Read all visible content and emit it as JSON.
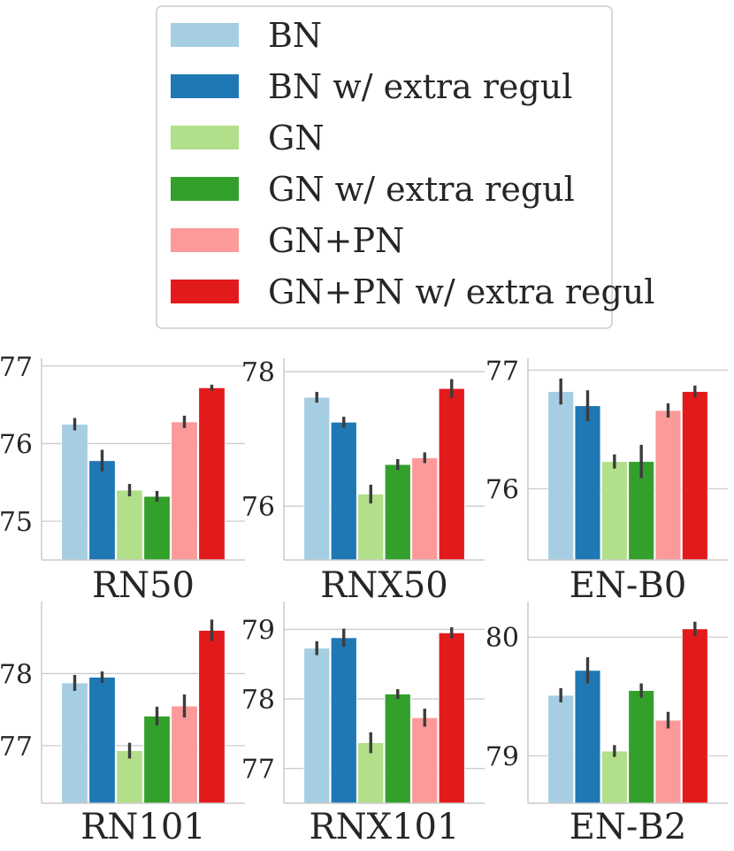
{
  "legend": {
    "entries": [
      {
        "label": "BN",
        "color": "#a6cee3"
      },
      {
        "label": "BN w/ extra regul",
        "color": "#1f78b4"
      },
      {
        "label": "GN",
        "color": "#b2df8a"
      },
      {
        "label": "GN w/ extra regul",
        "color": "#33a02c"
      },
      {
        "label": "GN+PN",
        "color": "#fb9a99"
      },
      {
        "label": "GN+PN w/ extra regul",
        "color": "#e31a1c"
      }
    ]
  },
  "chart_data": [
    {
      "type": "bar",
      "title": "",
      "xlabel": "RN50",
      "ylabel": "",
      "ylim": [
        74.5,
        77.1
      ],
      "yticks": [
        75,
        76,
        77
      ],
      "series_names": [
        "BN",
        "BN w/ extra regul",
        "GN",
        "GN w/ extra regul",
        "GN+PN",
        "GN+PN w/ extra regul"
      ],
      "values": [
        76.25,
        75.78,
        75.4,
        75.32,
        76.28,
        76.72
      ],
      "errors": [
        0.08,
        0.14,
        0.08,
        0.07,
        0.08,
        0.04
      ]
    },
    {
      "type": "bar",
      "title": "",
      "xlabel": "RNX50",
      "ylabel": "",
      "ylim": [
        75.2,
        78.2
      ],
      "yticks": [
        76,
        78
      ],
      "series_names": [
        "BN",
        "BN w/ extra regul",
        "GN",
        "GN w/ extra regul",
        "GN+PN",
        "GN+PN w/ extra regul"
      ],
      "values": [
        77.62,
        77.25,
        76.18,
        76.62,
        76.72,
        77.75
      ],
      "errors": [
        0.08,
        0.08,
        0.14,
        0.08,
        0.08,
        0.14
      ]
    },
    {
      "type": "bar",
      "title": "",
      "xlabel": "EN-B0",
      "ylabel": "",
      "ylim": [
        75.4,
        77.1
      ],
      "yticks": [
        76,
        77
      ],
      "series_names": [
        "BN",
        "BN w/ extra regul",
        "GN",
        "GN w/ extra regul",
        "GN+PN",
        "GN+PN w/ extra regul"
      ],
      "values": [
        76.82,
        76.7,
        76.23,
        76.23,
        76.66,
        76.82
      ],
      "errors": [
        0.11,
        0.13,
        0.06,
        0.14,
        0.06,
        0.05
      ]
    },
    {
      "type": "bar",
      "title": "",
      "xlabel": "RN101",
      "ylabel": "",
      "ylim": [
        76.2,
        79.0
      ],
      "yticks": [
        77,
        78
      ],
      "series_names": [
        "BN",
        "BN w/ extra regul",
        "GN",
        "GN w/ extra regul",
        "GN+PN",
        "GN+PN w/ extra regul"
      ],
      "values": [
        77.87,
        77.95,
        76.93,
        77.41,
        77.55,
        78.6
      ],
      "errors": [
        0.11,
        0.08,
        0.11,
        0.13,
        0.16,
        0.15
      ]
    },
    {
      "type": "bar",
      "title": "",
      "xlabel": "RNX101",
      "ylabel": "",
      "ylim": [
        76.5,
        79.4
      ],
      "yticks": [
        77,
        78,
        79
      ],
      "series_names": [
        "BN",
        "BN w/ extra regul",
        "GN",
        "GN w/ extra regul",
        "GN+PN",
        "GN+PN w/ extra regul"
      ],
      "values": [
        78.73,
        78.88,
        77.37,
        78.07,
        77.73,
        78.95
      ],
      "errors": [
        0.1,
        0.13,
        0.15,
        0.07,
        0.13,
        0.08
      ]
    },
    {
      "type": "bar",
      "title": "",
      "xlabel": "EN-B2",
      "ylabel": "",
      "ylim": [
        78.6,
        80.3
      ],
      "yticks": [
        79,
        80
      ],
      "series_names": [
        "BN",
        "BN w/ extra regul",
        "GN",
        "GN w/ extra regul",
        "GN+PN",
        "GN+PN w/ extra regul"
      ],
      "values": [
        79.51,
        79.72,
        79.04,
        79.55,
        79.3,
        80.07
      ],
      "errors": [
        0.06,
        0.11,
        0.05,
        0.06,
        0.07,
        0.06
      ]
    }
  ]
}
